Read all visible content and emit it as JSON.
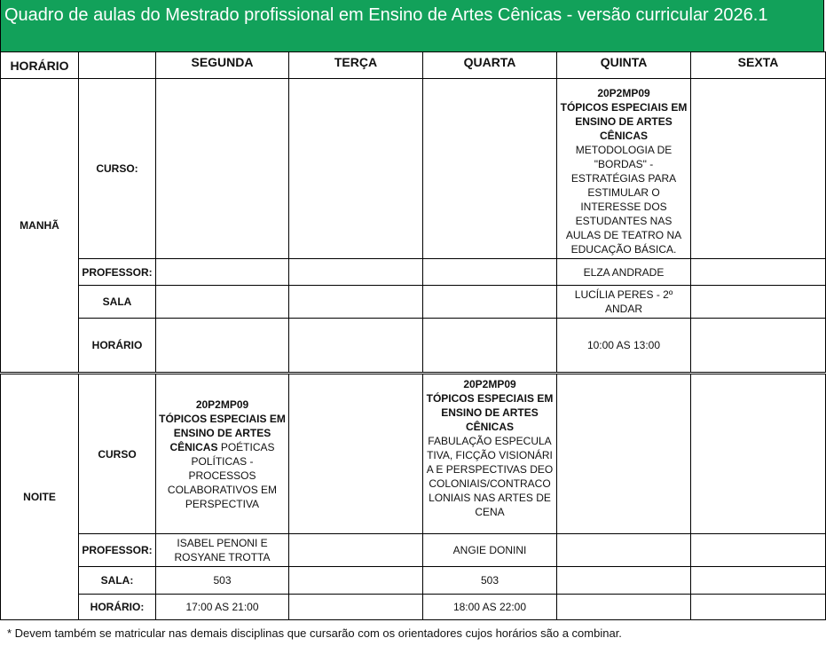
{
  "title": "Quadro de aulas do Mestrado profissional em Ensino de Artes Cênicas - versão curricular 2026.1",
  "header": {
    "horario": "HORÁRIO",
    "days": [
      "SEGUNDA",
      "TERÇA",
      "QUARTA",
      "QUINTA",
      "SEXTA"
    ]
  },
  "manha": {
    "period": "MANHÃ",
    "labels": {
      "curso": "CURSO:",
      "professor": "PROFESSOR:",
      "sala": "SALA",
      "horario": "HORÁRIO"
    },
    "quinta": {
      "code": "20P2MP09",
      "course": "TÓPICOS ESPECIAIS EM ENSINO DE ARTES CÊNICAS",
      "subtitle": "METODOLOGIA DE \"BORDAS\" - ESTRATÉGIAS PARA ESTIMULAR O INTERESSE DOS ESTUDANTES NAS AULAS DE TEATRO NA EDUCAÇÃO BÁSICA.",
      "professor": "ELZA ANDRADE",
      "sala": "LUCÍLIA PERES - 2º ANDAR",
      "horario": "10:00 AS 13:00"
    }
  },
  "noite": {
    "period": "NOITE",
    "labels": {
      "curso": "CURSO",
      "professor": "PROFESSOR:",
      "sala": "SALA:",
      "horario": "HORÁRIO:"
    },
    "segunda": {
      "code": "20P2MP09",
      "course": "TÓPICOS ESPECIAIS EM ENSINO DE ARTES CÊNICAS",
      "subtitle": "POÉTICAS POLÍTICAS - PROCESSOS COLABORATIVOS EM PERSPECTIVA",
      "professor": "ISABEL PENONI E ROSYANE TROTTA",
      "sala": "503",
      "horario": "17:00 AS 21:00"
    },
    "quarta": {
      "code": "20P2MP09",
      "course": "TÓPICOS ESPECIAIS EM ENSINO DE ARTES CÊNICAS",
      "subtitle": "FABULAÇÃO ESPECULATIVA, FICÇÃO VISIONÁRIA E PERSPECTIVAS DEOCOLONIAIS/CONTRACOLONIAIS NAS ARTES DE CENA",
      "professor": "ANGIE DONINI",
      "sala": "503",
      "horario": "18:00 AS 22:00"
    }
  },
  "footer": "* Devem também se matricular nas demais disciplinas  que cursarão com os orientadores cujos horários são a combinar.",
  "colors": {
    "title_bg": "#12a15a"
  }
}
